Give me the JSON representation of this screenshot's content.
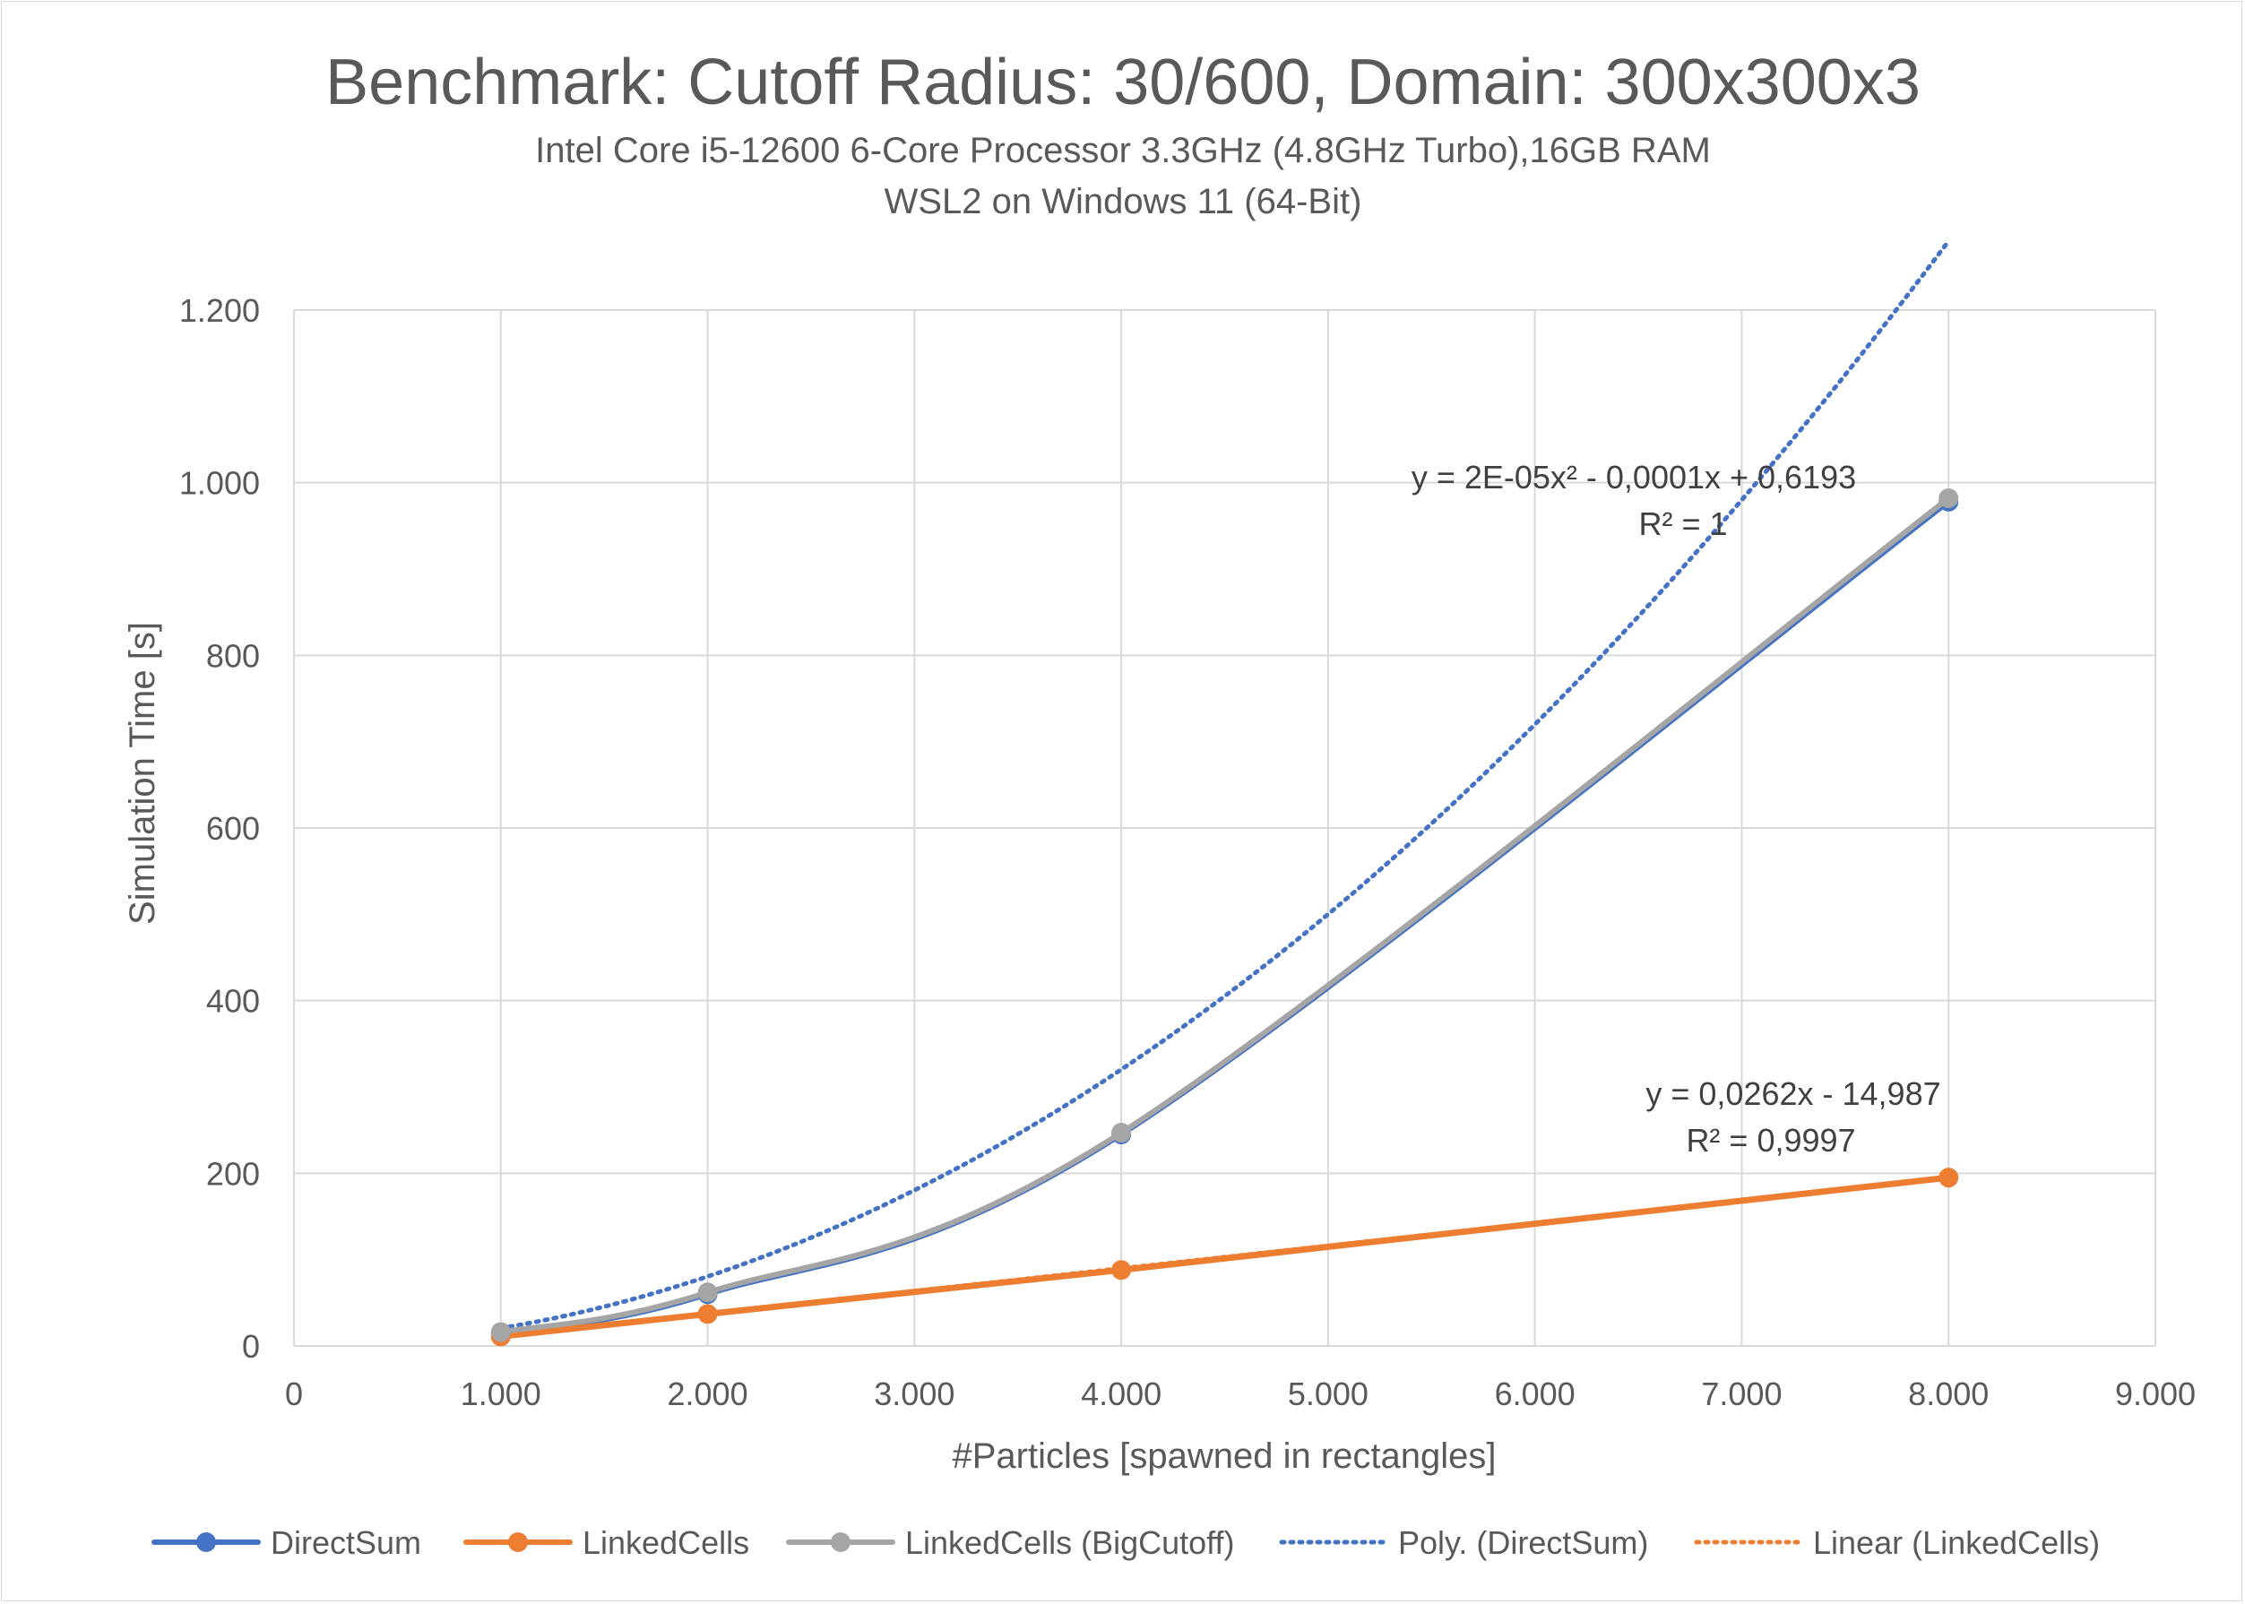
{
  "chart_data": {
    "type": "line",
    "title": "Benchmark: Cutoff Radius: 30/600, Domain: 300x300x3",
    "subtitle_lines": [
      "Intel Core i5-12600 6-Core Processor 3.3GHz (4.8GHz Turbo),16GB RAM",
      "WSL2 on Windows 11 (64-Bit)"
    ],
    "xlabel": "#Particles [spawned in rectangles]",
    "ylabel": "Simulation Time [s]",
    "xlim": [
      0,
      9000
    ],
    "ylim": [
      0,
      1200
    ],
    "x_ticks": [
      0,
      1000,
      2000,
      3000,
      4000,
      5000,
      6000,
      7000,
      8000,
      9000
    ],
    "x_tick_labels": [
      "0",
      "1.000",
      "2.000",
      "3.000",
      "4.000",
      "5.000",
      "6.000",
      "7.000",
      "8.000",
      "9.000"
    ],
    "y_ticks": [
      0,
      200,
      400,
      600,
      800,
      1000,
      1200
    ],
    "y_tick_labels": [
      "0",
      "200",
      "400",
      "600",
      "800",
      "1.000",
      "1.200"
    ],
    "grid": true,
    "legend_position": "bottom",
    "series": [
      {
        "name": "DirectSum",
        "color": "#4472C4",
        "style": "smooth-line-markers",
        "x": [
          1000,
          2000,
          4000,
          8000
        ],
        "y": [
          15,
          60,
          245,
          978
        ]
      },
      {
        "name": "LinkedCells",
        "color": "#ED7D31",
        "style": "line-markers",
        "x": [
          1000,
          2000,
          4000,
          8000
        ],
        "y": [
          11,
          37,
          88,
          195
        ]
      },
      {
        "name": "LinkedCells (BigCutoff)",
        "color": "#A5A5A5",
        "style": "smooth-line-markers",
        "x": [
          1000,
          2000,
          4000,
          8000
        ],
        "y": [
          16,
          62,
          247,
          982
        ]
      }
    ],
    "trendlines": [
      {
        "name": "Poly. (DirectSum)",
        "color": "#4472C4",
        "type": "polynomial",
        "coefficients": [
          2e-05,
          -0.0001,
          0.6193
        ],
        "x_range": [
          1000,
          8000
        ],
        "equation_text": "y = 2E-05x² - 0,0001x + 0,6193",
        "r2_text": "R² = 1"
      },
      {
        "name": "Linear (LinkedCells)",
        "color": "#ED7D31",
        "type": "linear",
        "coefficients": [
          0.0262,
          -14.987
        ],
        "x_range": [
          1000,
          8000
        ],
        "equation_text": "y = 0,0262x - 14,987",
        "r2_text": "R² = 0,9997"
      }
    ]
  }
}
